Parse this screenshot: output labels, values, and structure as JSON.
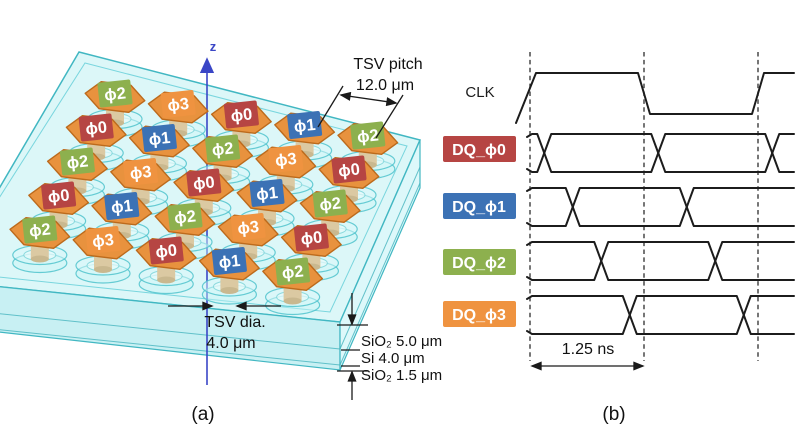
{
  "figure": {
    "panel_a_label": "(a)",
    "panel_b_label": "(b)",
    "colors": {
      "phase0": "#b64543",
      "phase1": "#3c72b5",
      "phase2": "#8db04e",
      "phase3": "#ef9340",
      "pad": "#e8923e",
      "pad_edge": "#bc6a1c",
      "slab_fill": "#bff0f3",
      "slab_edge": "#41b7c2",
      "cylinder": "#dbc9a2",
      "axis": "#3a46c6",
      "ink": "#1a1a1a"
    },
    "panel_a": {
      "z_axis_label": "z",
      "pitch_label": [
        "TSV pitch",
        "12.0 μm"
      ],
      "dia_label": [
        "TSV dia.",
        "4.0 μm"
      ],
      "layer_labels": [
        "SiO₂ 5.0 μm",
        "Si 4.0 μm",
        "SiO₂ 1.5 μm"
      ],
      "phase_prefix": "ϕ",
      "grid": {
        "rows": 5,
        "cols": 5,
        "phases": [
          [
            2,
            3,
            0,
            1,
            2
          ],
          [
            0,
            1,
            2,
            3,
            0
          ],
          [
            2,
            3,
            0,
            1,
            2
          ],
          [
            0,
            1,
            2,
            3,
            0
          ],
          [
            2,
            3,
            0,
            1,
            2
          ]
        ]
      }
    },
    "panel_b": {
      "clk_label": "CLK",
      "time_label": "1.25 ns",
      "time_unit_ns": 1.25,
      "gridline_times": [
        0,
        1,
        2
      ],
      "clk_edges": [
        {
          "t": 0,
          "edge": "rise"
        },
        {
          "t": 1,
          "edge": "fall"
        },
        {
          "t": 2,
          "edge": "rise"
        }
      ],
      "signals": [
        {
          "label": "DQ_ϕ0",
          "phase": 0,
          "crossings_t": [
            0.125,
            1.125,
            2.125
          ]
        },
        {
          "label": "DQ_ϕ1",
          "phase": 1,
          "crossings_t": [
            0.375,
            1.375
          ]
        },
        {
          "label": "DQ_ϕ2",
          "phase": 2,
          "crossings_t": [
            0.625,
            1.625
          ]
        },
        {
          "label": "DQ_ϕ3",
          "phase": 3,
          "crossings_t": [
            0.875,
            1.875
          ]
        }
      ]
    }
  }
}
